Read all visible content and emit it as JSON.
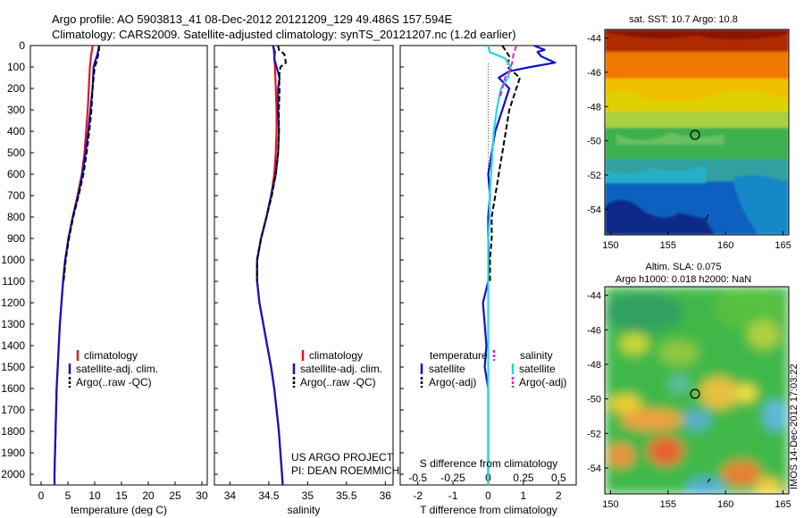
{
  "header": {
    "line1": "Argo profile: AO 5903813_41 08-Dec-2012 20121209_129 49.486S 157.594E",
    "line2": "Climatology: CARS2009. Satellite-adjusted climatology: synTS_20121207.nc (1.2d earlier)"
  },
  "colors": {
    "climatology": "#e8141c",
    "satellite": "#1010c8",
    "argo": "#000000",
    "satellite_s": "#22d8e0",
    "argo_s": "#e020d0"
  },
  "depth_axis": {
    "ylim": [
      0,
      2050
    ],
    "ticks": [
      0,
      100,
      200,
      300,
      400,
      500,
      600,
      700,
      800,
      900,
      1000,
      1100,
      1200,
      1300,
      1400,
      1500,
      1600,
      1700,
      1800,
      1900,
      2000
    ]
  },
  "chart_data": [
    {
      "type": "line",
      "id": "temperature",
      "xlabel": "temperature (deg C)",
      "xlim": [
        -2,
        31
      ],
      "xticks": [
        0,
        5,
        10,
        15,
        20,
        25,
        30
      ],
      "legend": [
        "climatology",
        "satellite-adj. clim.",
        "Argo(..raw -QC)"
      ],
      "series": [
        {
          "name": "climatology",
          "color": "#e8141c",
          "depth": [
            0,
            20,
            50,
            80,
            100,
            200,
            300,
            400,
            500,
            600,
            700,
            800,
            900,
            1000,
            1100,
            1200,
            1300,
            1400,
            1500,
            1600,
            1700,
            1800,
            1900,
            2000,
            2050
          ],
          "values": [
            9.6,
            9.5,
            9.3,
            9.2,
            9.1,
            8.9,
            8.7,
            8.4,
            8.1,
            7.6,
            6.8,
            5.9,
            5.1,
            4.5,
            4.1,
            3.8,
            3.5,
            3.3,
            3.1,
            2.9,
            2.8,
            2.7,
            2.6,
            2.5,
            2.5
          ]
        },
        {
          "name": "satellite-adj. clim.",
          "color": "#1010c8",
          "depth": [
            0,
            20,
            50,
            80,
            100,
            200,
            300,
            400,
            500,
            600,
            700,
            800,
            900,
            1000,
            1100,
            1200,
            1300,
            1400,
            1500,
            1600,
            1700,
            1800,
            1900,
            2000,
            2050
          ],
          "values": [
            10.8,
            10.7,
            10.4,
            10.0,
            9.8,
            9.6,
            9.2,
            8.8,
            8.3,
            7.7,
            6.9,
            5.9,
            5.1,
            4.5,
            4.1,
            3.8,
            3.5,
            3.3,
            3.1,
            2.9,
            2.8,
            2.7,
            2.6,
            2.5,
            2.5
          ]
        },
        {
          "name": "Argo(..raw -QC)",
          "color": "#000000",
          "dashed": true,
          "depth": [
            0,
            20,
            50,
            80,
            100,
            150,
            200,
            300,
            400,
            500,
            600,
            700,
            800,
            900,
            1000,
            1100
          ],
          "values": [
            10.8,
            10.8,
            10.6,
            10.3,
            10.0,
            9.8,
            9.6,
            9.4,
            9.0,
            8.5,
            7.9,
            7.0,
            6.0,
            5.2,
            4.6,
            4.2
          ]
        }
      ]
    },
    {
      "type": "line",
      "id": "salinity",
      "xlabel": "salinity",
      "xlim": [
        33.8,
        36.1
      ],
      "xticks": [
        34,
        34.5,
        35,
        35.5,
        36
      ],
      "legend": [
        "climatology",
        "satellite-adj. clim.",
        "Argo(..raw -QC)"
      ],
      "series": [
        {
          "name": "climatology",
          "color": "#e8141c",
          "depth": [
            0,
            50,
            100,
            200,
            300,
            400,
            500,
            600,
            700,
            800,
            900,
            1000,
            1100,
            1200,
            1300,
            1400,
            1500,
            1600,
            1700,
            1800,
            1900,
            2000,
            2050
          ],
          "values": [
            34.56,
            34.57,
            34.58,
            34.59,
            34.6,
            34.6,
            34.59,
            34.57,
            34.53,
            34.47,
            34.4,
            34.35,
            34.35,
            34.38,
            34.43,
            34.48,
            34.53,
            34.57,
            34.6,
            34.63,
            34.65,
            34.67,
            34.68
          ]
        },
        {
          "name": "satellite-adj. clim.",
          "color": "#1010c8",
          "depth": [
            0,
            30,
            60,
            100,
            150,
            200,
            300,
            400,
            500,
            600,
            700,
            800,
            900,
            1000,
            1100,
            1200,
            1300,
            1400,
            1500,
            1600,
            1700,
            1800,
            1900,
            2000,
            2050
          ],
          "values": [
            34.55,
            34.58,
            34.57,
            34.6,
            34.64,
            34.62,
            34.62,
            34.63,
            34.62,
            34.59,
            34.53,
            34.47,
            34.4,
            34.35,
            34.35,
            34.38,
            34.43,
            34.48,
            34.53,
            34.57,
            34.6,
            34.63,
            34.65,
            34.67,
            34.68
          ]
        },
        {
          "name": "Argo(..raw -QC)",
          "color": "#000000",
          "dashed": true,
          "depth": [
            0,
            20,
            40,
            80,
            100,
            150,
            200,
            300,
            400,
            500,
            600,
            700,
            800,
            900,
            1000,
            1100
          ],
          "values": [
            34.62,
            34.63,
            34.7,
            34.72,
            34.65,
            34.63,
            34.64,
            34.63,
            34.63,
            34.62,
            34.59,
            34.54,
            34.47,
            34.4,
            34.35,
            34.35
          ]
        }
      ]
    },
    {
      "type": "line",
      "id": "difference",
      "xlabel": "T difference from climatology",
      "x2label": "S difference from climatology",
      "xlim": [
        -2.5,
        2.5
      ],
      "xticks": [
        -2,
        -1,
        0,
        1,
        2
      ],
      "x2ticks": [
        -0.5,
        -0.25,
        0,
        0.25,
        0.5
      ],
      "legend_t_title": "temperature",
      "legend_s_title": "salinity",
      "legend_t": [
        "satellite",
        "Argo(-adj)"
      ],
      "legend_s": [
        "satellite",
        "Argo(-adj)"
      ],
      "series": [
        {
          "name": "T satellite",
          "color": "#1010c8",
          "depth": [
            0,
            20,
            30,
            50,
            80,
            100,
            120,
            150,
            200,
            300,
            400,
            500,
            600,
            700,
            800,
            900,
            1000,
            1100,
            1200,
            1300,
            1400,
            1500,
            1600,
            1700,
            1800,
            1900,
            2000,
            2050
          ],
          "values": [
            1.3,
            1.6,
            1.4,
            1.5,
            1.9,
            1.2,
            0.6,
            0.3,
            0.6,
            0.4,
            0.2,
            0.1,
            0.0,
            0.05,
            0.0,
            0.0,
            0.02,
            0.0,
            -0.15,
            -0.1,
            -0.05,
            -0.1,
            0.0,
            0.0,
            0.0,
            0.0,
            0.0,
            0.0
          ]
        },
        {
          "name": "T Argo(-adj)",
          "color": "#000000",
          "dashed": true,
          "depth": [
            0,
            50,
            100,
            150,
            200,
            300,
            400,
            500,
            600,
            700,
            800,
            900,
            1000,
            1100
          ],
          "values": [
            0.4,
            0.6,
            0.55,
            0.9,
            0.8,
            0.6,
            0.5,
            0.4,
            0.3,
            0.2,
            0.1,
            0.1,
            0.05,
            0.05
          ]
        },
        {
          "name": "S satellite",
          "color": "#22d8e0",
          "depth": [
            0,
            30,
            60,
            100,
            150,
            200,
            300,
            400,
            500,
            600,
            700,
            800,
            900,
            1000,
            1100,
            1200,
            1300,
            1400,
            1500,
            1600,
            1700,
            1800,
            1900,
            2000,
            2050
          ],
          "values": [
            0.0,
            0.01,
            0.12,
            0.16,
            0.14,
            0.09,
            0.06,
            0.04,
            0.03,
            0.02,
            0.01,
            0.01,
            0.0,
            0.0,
            0.0,
            0.0,
            0.0,
            0.0,
            0.0,
            0.0,
            0.0,
            0.0,
            0.0,
            0.0,
            0.0
          ]
        },
        {
          "name": "S Argo(-adj)",
          "color": "#e020d0",
          "dashed": true,
          "depth": [
            0,
            40,
            80,
            120,
            150,
            200,
            250
          ],
          "values": [
            0.2,
            0.18,
            0.17,
            0.15,
            0.12,
            0.1,
            0.08
          ]
        }
      ]
    },
    {
      "type": "heatmap",
      "id": "sst-map",
      "title": "sat. SST: 10.7  Argo: 10.8",
      "xlim": [
        149.5,
        165.5
      ],
      "ylim": [
        -55.5,
        -43.5
      ],
      "xticks": [
        150,
        155,
        160,
        165
      ],
      "yticks": [
        -44,
        -46,
        -48,
        -50,
        -52,
        -54
      ],
      "marker": {
        "lon": 157.594,
        "lat": -49.486
      }
    },
    {
      "type": "heatmap",
      "id": "sla-map",
      "title_line1": "Altim. SLA: 0.075",
      "title_line2": "Argo h1000: 0.018  h2000: NaN",
      "xlim": [
        149.5,
        165.5
      ],
      "ylim": [
        -55.5,
        -43.5
      ],
      "xticks": [
        150,
        155,
        160,
        165
      ],
      "yticks": [
        -44,
        -46,
        -48,
        -50,
        -52,
        -54
      ],
      "marker": {
        "lon": 157.594,
        "lat": -49.486
      }
    }
  ],
  "credits": {
    "line1": "US ARGO PROJECT",
    "line2": "PI: DEAN ROEMMICH"
  },
  "stamp": "IMOS 14-Dec-2012 17:03:22"
}
